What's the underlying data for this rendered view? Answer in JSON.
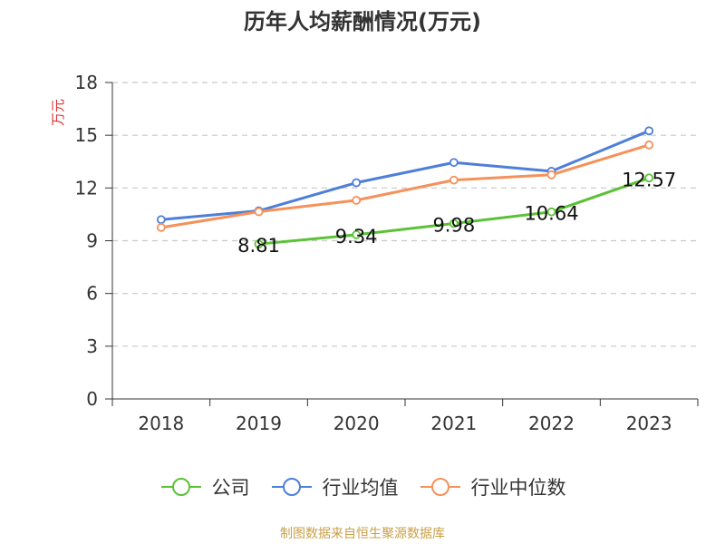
{
  "title": "历年人均薪酬情况(万元)",
  "source": "制图数据来自恒生聚源数据库",
  "colors": {
    "company": "#5cc137",
    "industry_avg": "#4e7fd8",
    "industry_median": "#f5915b",
    "grid": "#c8c8c8",
    "axis": "#333333",
    "ylabel": "#e03030"
  },
  "chart_data": {
    "type": "line",
    "title": "历年人均薪酬情况(万元)",
    "ylabel": "万元",
    "xlabel": "",
    "categories": [
      "2018",
      "2019",
      "2020",
      "2021",
      "2022",
      "2023"
    ],
    "ylim": [
      0,
      18
    ],
    "yticks": [
      "0",
      "3",
      "6",
      "9",
      "12",
      "15",
      "18"
    ],
    "grid": true,
    "legend_position": "bottom",
    "series": [
      {
        "name": "公司",
        "color": "#5cc137",
        "values": [
          null,
          8.81,
          9.34,
          9.98,
          10.64,
          12.57
        ],
        "labels": [
          "",
          "8.81",
          "9.34",
          "9.98",
          "10.64",
          "12.57"
        ]
      },
      {
        "name": "行业均值",
        "color": "#4e7fd8",
        "values": [
          10.2,
          10.7,
          12.3,
          13.45,
          12.95,
          15.25
        ]
      },
      {
        "name": "行业中位数",
        "color": "#f5915b",
        "values": [
          9.75,
          10.65,
          11.3,
          12.45,
          12.75,
          14.45
        ]
      }
    ]
  }
}
